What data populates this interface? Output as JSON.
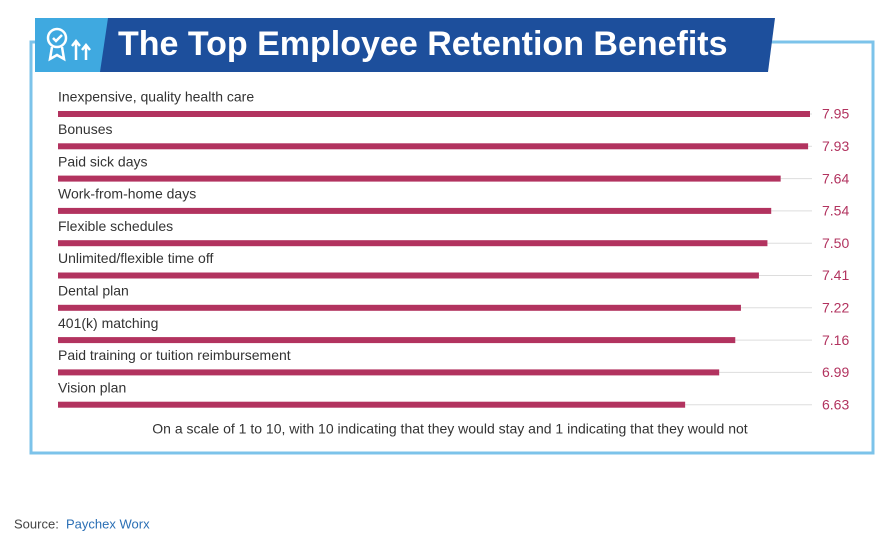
{
  "chart_data": {
    "type": "bar",
    "orientation": "horizontal",
    "title": "The Top Employee Retention Benefits",
    "categories": [
      "Inexpensive, quality health care",
      "Bonuses",
      "Paid sick days",
      "Work-from-home days",
      "Flexible schedules",
      "Unlimited/flexible time off",
      "Dental plan",
      "401(k) matching",
      "Paid training or tuition reimbursement",
      "Vision plan"
    ],
    "values": [
      7.95,
      7.93,
      7.64,
      7.54,
      7.5,
      7.41,
      7.22,
      7.16,
      6.99,
      6.63
    ],
    "value_labels": [
      "7.95",
      "7.93",
      "7.64",
      "7.54",
      "7.50",
      "7.41",
      "7.22",
      "7.16",
      "6.99",
      "6.63"
    ],
    "color": "#b2335f",
    "note": "On a scale of 1 to 10, with 10 indicating that they would stay and 1 indicating that they would not"
  },
  "source": {
    "label": "Source:",
    "link": "Paychex Worx"
  }
}
